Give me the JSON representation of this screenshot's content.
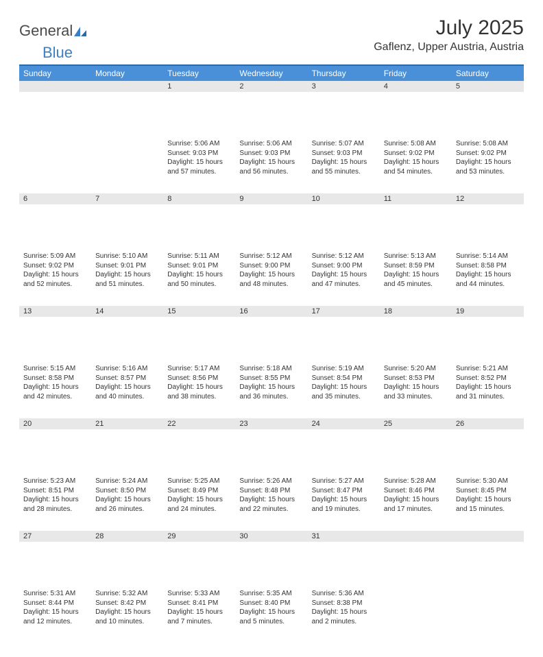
{
  "logo": {
    "general": "General",
    "blue": "Blue"
  },
  "title": "July 2025",
  "location": "Gaflenz, Upper Austria, Austria",
  "weekdays": [
    "Sunday",
    "Monday",
    "Tuesday",
    "Wednesday",
    "Thursday",
    "Friday",
    "Saturday"
  ],
  "colors": {
    "header_bg": "#4a90d9",
    "header_text": "#ffffff",
    "border": "#2b6aa8",
    "daynum_bg": "#e8e8e8",
    "text": "#333333",
    "logo_blue": "#3b7fc4"
  },
  "weeks": [
    [
      {
        "num": "",
        "content": ""
      },
      {
        "num": "",
        "content": ""
      },
      {
        "num": "1",
        "sunrise": "5:06 AM",
        "sunset": "9:03 PM",
        "daylight": "15 hours and 57 minutes."
      },
      {
        "num": "2",
        "sunrise": "5:06 AM",
        "sunset": "9:03 PM",
        "daylight": "15 hours and 56 minutes."
      },
      {
        "num": "3",
        "sunrise": "5:07 AM",
        "sunset": "9:03 PM",
        "daylight": "15 hours and 55 minutes."
      },
      {
        "num": "4",
        "sunrise": "5:08 AM",
        "sunset": "9:02 PM",
        "daylight": "15 hours and 54 minutes."
      },
      {
        "num": "5",
        "sunrise": "5:08 AM",
        "sunset": "9:02 PM",
        "daylight": "15 hours and 53 minutes."
      }
    ],
    [
      {
        "num": "6",
        "sunrise": "5:09 AM",
        "sunset": "9:02 PM",
        "daylight": "15 hours and 52 minutes."
      },
      {
        "num": "7",
        "sunrise": "5:10 AM",
        "sunset": "9:01 PM",
        "daylight": "15 hours and 51 minutes."
      },
      {
        "num": "8",
        "sunrise": "5:11 AM",
        "sunset": "9:01 PM",
        "daylight": "15 hours and 50 minutes."
      },
      {
        "num": "9",
        "sunrise": "5:12 AM",
        "sunset": "9:00 PM",
        "daylight": "15 hours and 48 minutes."
      },
      {
        "num": "10",
        "sunrise": "5:12 AM",
        "sunset": "9:00 PM",
        "daylight": "15 hours and 47 minutes."
      },
      {
        "num": "11",
        "sunrise": "5:13 AM",
        "sunset": "8:59 PM",
        "daylight": "15 hours and 45 minutes."
      },
      {
        "num": "12",
        "sunrise": "5:14 AM",
        "sunset": "8:58 PM",
        "daylight": "15 hours and 44 minutes."
      }
    ],
    [
      {
        "num": "13",
        "sunrise": "5:15 AM",
        "sunset": "8:58 PM",
        "daylight": "15 hours and 42 minutes."
      },
      {
        "num": "14",
        "sunrise": "5:16 AM",
        "sunset": "8:57 PM",
        "daylight": "15 hours and 40 minutes."
      },
      {
        "num": "15",
        "sunrise": "5:17 AM",
        "sunset": "8:56 PM",
        "daylight": "15 hours and 38 minutes."
      },
      {
        "num": "16",
        "sunrise": "5:18 AM",
        "sunset": "8:55 PM",
        "daylight": "15 hours and 36 minutes."
      },
      {
        "num": "17",
        "sunrise": "5:19 AM",
        "sunset": "8:54 PM",
        "daylight": "15 hours and 35 minutes."
      },
      {
        "num": "18",
        "sunrise": "5:20 AM",
        "sunset": "8:53 PM",
        "daylight": "15 hours and 33 minutes."
      },
      {
        "num": "19",
        "sunrise": "5:21 AM",
        "sunset": "8:52 PM",
        "daylight": "15 hours and 31 minutes."
      }
    ],
    [
      {
        "num": "20",
        "sunrise": "5:23 AM",
        "sunset": "8:51 PM",
        "daylight": "15 hours and 28 minutes."
      },
      {
        "num": "21",
        "sunrise": "5:24 AM",
        "sunset": "8:50 PM",
        "daylight": "15 hours and 26 minutes."
      },
      {
        "num": "22",
        "sunrise": "5:25 AM",
        "sunset": "8:49 PM",
        "daylight": "15 hours and 24 minutes."
      },
      {
        "num": "23",
        "sunrise": "5:26 AM",
        "sunset": "8:48 PM",
        "daylight": "15 hours and 22 minutes."
      },
      {
        "num": "24",
        "sunrise": "5:27 AM",
        "sunset": "8:47 PM",
        "daylight": "15 hours and 19 minutes."
      },
      {
        "num": "25",
        "sunrise": "5:28 AM",
        "sunset": "8:46 PM",
        "daylight": "15 hours and 17 minutes."
      },
      {
        "num": "26",
        "sunrise": "5:30 AM",
        "sunset": "8:45 PM",
        "daylight": "15 hours and 15 minutes."
      }
    ],
    [
      {
        "num": "27",
        "sunrise": "5:31 AM",
        "sunset": "8:44 PM",
        "daylight": "15 hours and 12 minutes."
      },
      {
        "num": "28",
        "sunrise": "5:32 AM",
        "sunset": "8:42 PM",
        "daylight": "15 hours and 10 minutes."
      },
      {
        "num": "29",
        "sunrise": "5:33 AM",
        "sunset": "8:41 PM",
        "daylight": "15 hours and 7 minutes."
      },
      {
        "num": "30",
        "sunrise": "5:35 AM",
        "sunset": "8:40 PM",
        "daylight": "15 hours and 5 minutes."
      },
      {
        "num": "31",
        "sunrise": "5:36 AM",
        "sunset": "8:38 PM",
        "daylight": "15 hours and 2 minutes."
      },
      {
        "num": "",
        "content": ""
      },
      {
        "num": "",
        "content": ""
      }
    ]
  ],
  "labels": {
    "sunrise": "Sunrise:",
    "sunset": "Sunset:",
    "daylight": "Daylight:"
  }
}
